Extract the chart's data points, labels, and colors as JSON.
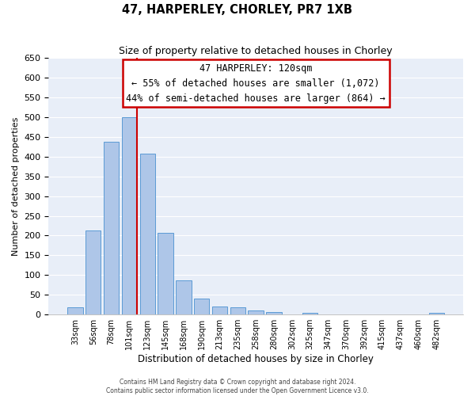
{
  "title": "47, HARPERLEY, CHORLEY, PR7 1XB",
  "subtitle": "Size of property relative to detached houses in Chorley",
  "xlabel": "Distribution of detached houses by size in Chorley",
  "ylabel": "Number of detached properties",
  "bar_labels": [
    "33sqm",
    "56sqm",
    "78sqm",
    "101sqm",
    "123sqm",
    "145sqm",
    "168sqm",
    "190sqm",
    "213sqm",
    "235sqm",
    "258sqm",
    "280sqm",
    "302sqm",
    "325sqm",
    "347sqm",
    "370sqm",
    "392sqm",
    "415sqm",
    "437sqm",
    "460sqm",
    "482sqm"
  ],
  "bar_values": [
    18,
    212,
    438,
    500,
    408,
    207,
    87,
    40,
    20,
    18,
    11,
    6,
    0,
    4,
    0,
    0,
    0,
    0,
    0,
    0,
    5
  ],
  "bar_color": "#aec6e8",
  "bar_edge_color": "#5b9bd5",
  "vline_color": "#cc0000",
  "vline_bar_index": 3,
  "annotation_title": "47 HARPERLEY: 120sqm",
  "annotation_line1": "← 55% of detached houses are smaller (1,072)",
  "annotation_line2": "44% of semi-detached houses are larger (864) →",
  "annotation_box_color": "#cc0000",
  "ylim": [
    0,
    650
  ],
  "yticks": [
    0,
    50,
    100,
    150,
    200,
    250,
    300,
    350,
    400,
    450,
    500,
    550,
    600,
    650
  ],
  "bg_color": "#e8eef8",
  "grid_color": "#ffffff",
  "footer1": "Contains HM Land Registry data © Crown copyright and database right 2024.",
  "footer2": "Contains public sector information licensed under the Open Government Licence v3.0."
}
